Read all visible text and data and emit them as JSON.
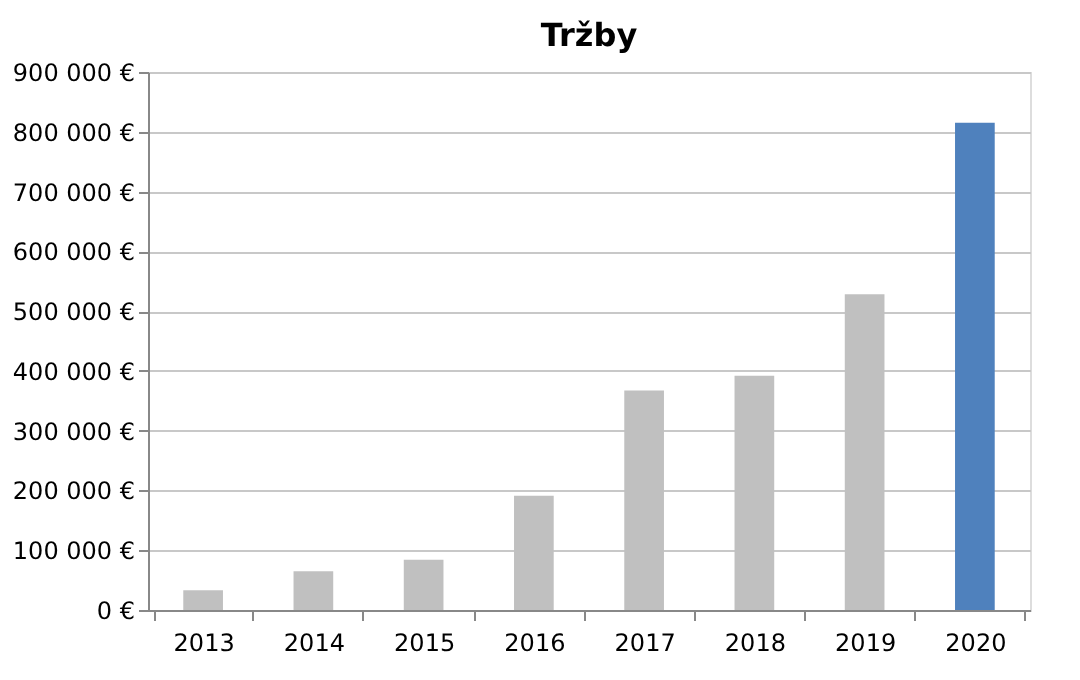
{
  "chart_data": {
    "type": "bar",
    "title": "Tržby",
    "categories": [
      "2013",
      "2014",
      "2015",
      "2016",
      "2017",
      "2018",
      "2019",
      "2020"
    ],
    "values": [
      33000,
      65000,
      84000,
      191000,
      367000,
      392000,
      528000,
      815000
    ],
    "colors": [
      "#c0c0c0",
      "#c0c0c0",
      "#c0c0c0",
      "#c0c0c0",
      "#c0c0c0",
      "#c0c0c0",
      "#c0c0c0",
      "#4f81bd"
    ],
    "ylim": [
      0,
      900000
    ],
    "yticks": [
      {
        "value": 0,
        "label": "0 €"
      },
      {
        "value": 100000,
        "label": "100 000 €"
      },
      {
        "value": 200000,
        "label": "200 000 €"
      },
      {
        "value": 300000,
        "label": "300 000 €"
      },
      {
        "value": 400000,
        "label": "400 000 €"
      },
      {
        "value": 500000,
        "label": "500 000 €"
      },
      {
        "value": 600000,
        "label": "600 000 €"
      },
      {
        "value": 700000,
        "label": "700 000 €"
      },
      {
        "value": 800000,
        "label": "800 000 €"
      },
      {
        "value": 900000,
        "label": "900 000 €"
      }
    ],
    "grid": "y"
  }
}
